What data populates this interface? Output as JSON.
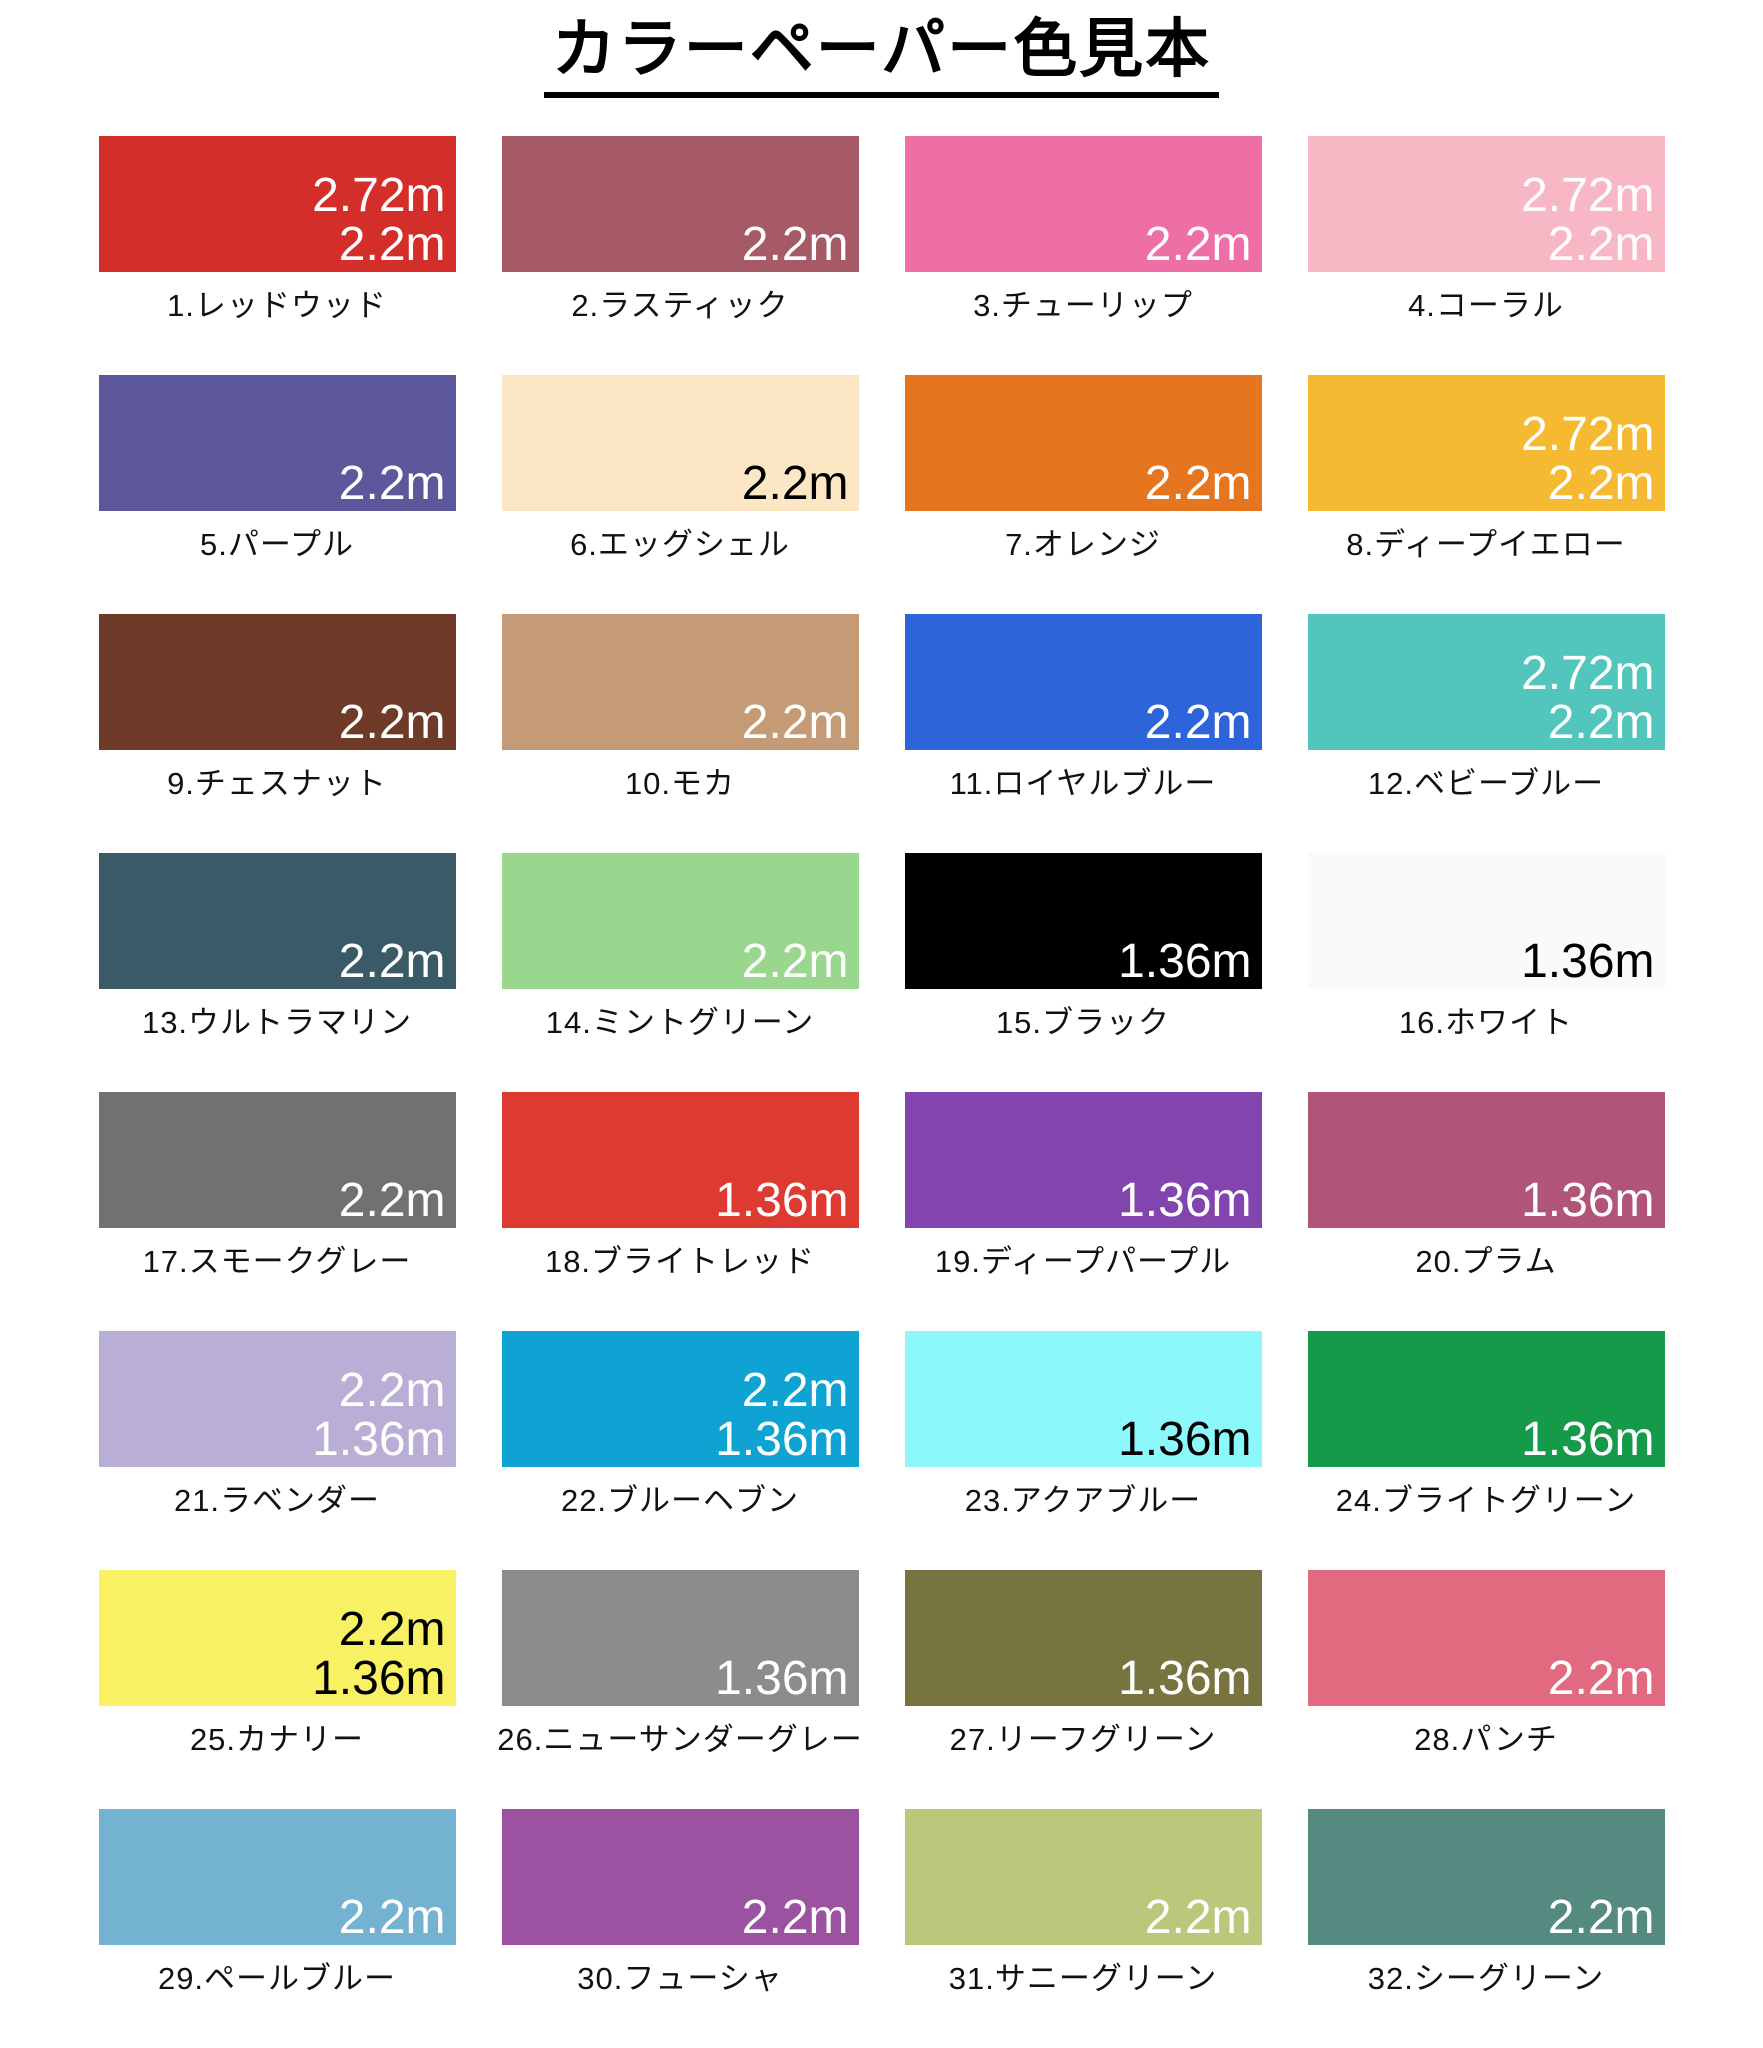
{
  "title": "カラーペーパー色見本",
  "swatches": [
    {
      "label": "1.レッドウッド",
      "sizes": [
        "2.72m",
        "2.2m"
      ],
      "color": "#d32e2a",
      "text_color": "#ffffff"
    },
    {
      "label": "2.ラスティック",
      "sizes": [
        "2.2m"
      ],
      "color": "#a65a65",
      "text_color": "#ffffff"
    },
    {
      "label": "3.チューリップ",
      "sizes": [
        "2.2m"
      ],
      "color": "#ee6ea6",
      "text_color": "#ffffff"
    },
    {
      "label": "4.コーラル",
      "sizes": [
        "2.72m",
        "2.2m"
      ],
      "color": "#f8b7c4",
      "text_color": "#ffffff"
    },
    {
      "label": "5.パープル",
      "sizes": [
        "2.2m"
      ],
      "color": "#5c589b",
      "text_color": "#ffffff"
    },
    {
      "label": "6.エッグシェル",
      "sizes": [
        "2.2m"
      ],
      "color": "#fbe7c3",
      "text_color": "#000000"
    },
    {
      "label": "7.オレンジ",
      "sizes": [
        "2.2m"
      ],
      "color": "#e5761f",
      "text_color": "#ffffff"
    },
    {
      "label": "8.ディープイエロー",
      "sizes": [
        "2.72m",
        "2.2m"
      ],
      "color": "#f6b932",
      "text_color": "#ffffff"
    },
    {
      "label": "9.チェスナット",
      "sizes": [
        "2.2m"
      ],
      "color": "#6f3a27",
      "text_color": "#ffffff"
    },
    {
      "label": "10.モカ",
      "sizes": [
        "2.2m"
      ],
      "color": "#c49a77",
      "text_color": "#ffffff"
    },
    {
      "label": "11.ロイヤルブルー",
      "sizes": [
        "2.2m"
      ],
      "color": "#2e64d9",
      "text_color": "#ffffff"
    },
    {
      "label": "12.ベビーブルー",
      "sizes": [
        "2.72m",
        "2.2m"
      ],
      "color": "#52c5bd",
      "text_color": "#ffffff"
    },
    {
      "label": "13.ウルトラマリン",
      "sizes": [
        "2.2m"
      ],
      "color": "#3a5a68",
      "text_color": "#ffffff"
    },
    {
      "label": "14.ミントグリーン",
      "sizes": [
        "2.2m"
      ],
      "color": "#98d78d",
      "text_color": "#ffffff"
    },
    {
      "label": "15.ブラック",
      "sizes": [
        "1.36m"
      ],
      "color": "#000000",
      "text_color": "#ffffff"
    },
    {
      "label": "16.ホワイト",
      "sizes": [
        "1.36m"
      ],
      "color": "#fafafa",
      "text_color": "#000000"
    },
    {
      "label": "17.スモークグレー",
      "sizes": [
        "2.2m"
      ],
      "color": "#717174",
      "text_color": "#ffffff"
    },
    {
      "label": "18.ブライトレッド",
      "sizes": [
        "1.36m"
      ],
      "color": "#dd3b31",
      "text_color": "#ffffff"
    },
    {
      "label": "19.ディープパープル",
      "sizes": [
        "1.36m"
      ],
      "color": "#8245ae",
      "text_color": "#ffffff"
    },
    {
      "label": "20.プラム",
      "sizes": [
        "1.36m"
      ],
      "color": "#b05577",
      "text_color": "#ffffff"
    },
    {
      "label": "21.ラベンダー",
      "sizes": [
        "2.2m",
        "1.36m"
      ],
      "color": "#b9aed6",
      "text_color": "#ffffff"
    },
    {
      "label": "22.ブルーヘブン",
      "sizes": [
        "2.2m",
        "1.36m"
      ],
      "color": "#0fa3d4",
      "text_color": "#ffffff"
    },
    {
      "label": "23.アクアブルー",
      "sizes": [
        "1.36m"
      ],
      "color": "#8cf8fb",
      "text_color": "#000000"
    },
    {
      "label": "24.ブライトグリーン",
      "sizes": [
        "1.36m"
      ],
      "color": "#159a4a",
      "text_color": "#ffffff"
    },
    {
      "label": "25.カナリー",
      "sizes": [
        "2.2m",
        "1.36m"
      ],
      "color": "#f7f163",
      "text_color": "#000000"
    },
    {
      "label": "26.ニューサンダーグレー",
      "sizes": [
        "1.36m"
      ],
      "color": "#8d8c8a",
      "text_color": "#ffffff"
    },
    {
      "label": "27.リーフグリーン",
      "sizes": [
        "1.36m"
      ],
      "color": "#77743f",
      "text_color": "#ffffff"
    },
    {
      "label": "28.パンチ",
      "sizes": [
        "2.2m"
      ],
      "color": "#e26a80",
      "text_color": "#ffffff"
    },
    {
      "label": "29.ペールブルー",
      "sizes": [
        "2.2m"
      ],
      "color": "#74b2d2",
      "text_color": "#ffffff"
    },
    {
      "label": "30.フューシャ",
      "sizes": [
        "2.2m"
      ],
      "color": "#9b52a0",
      "text_color": "#ffffff"
    },
    {
      "label": "31.サニーグリーン",
      "sizes": [
        "2.2m"
      ],
      "color": "#bdc77c",
      "text_color": "#ffffff"
    },
    {
      "label": "32.シーグリーン",
      "sizes": [
        "2.2m"
      ],
      "color": "#548a80",
      "text_color": "#ffffff"
    }
  ]
}
